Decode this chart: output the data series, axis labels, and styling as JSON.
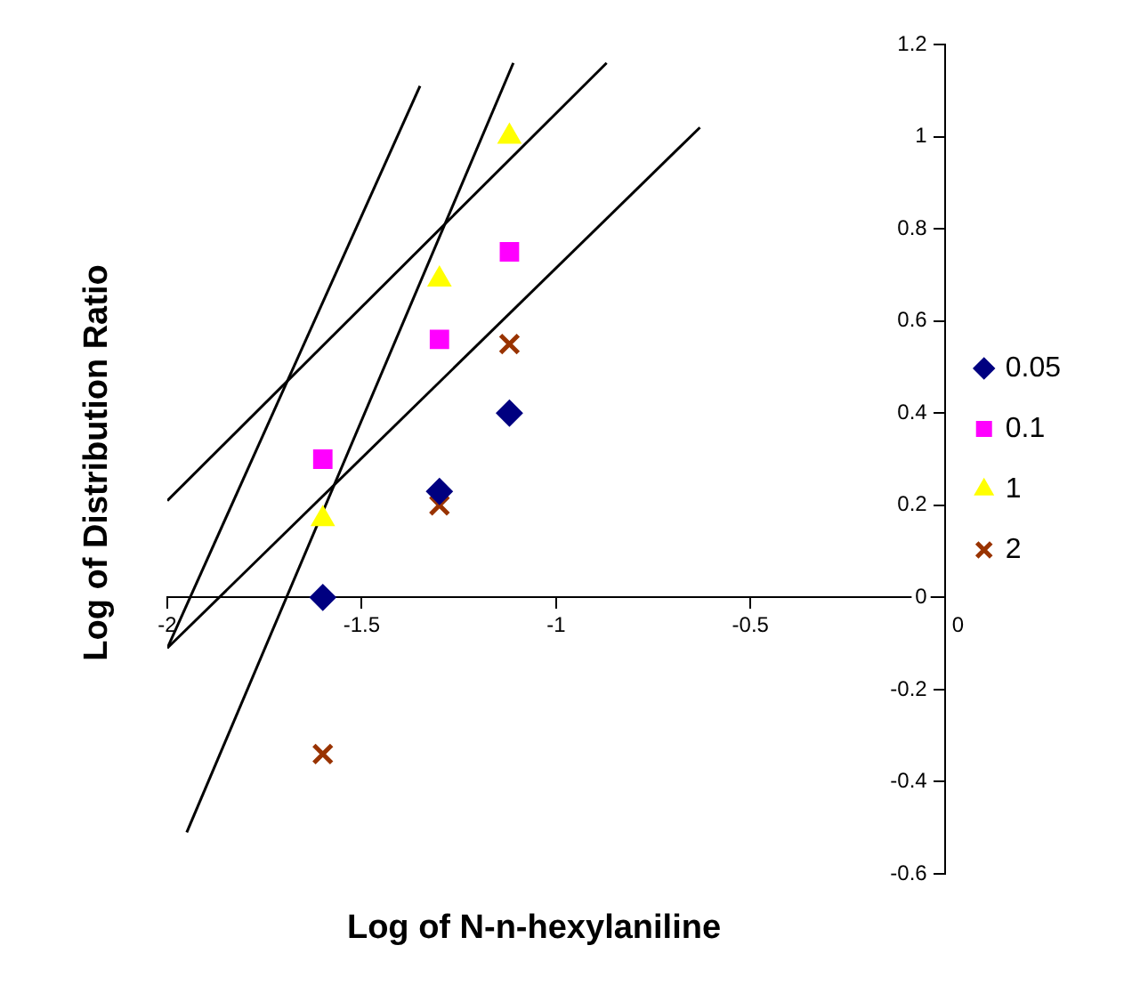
{
  "chart_data": {
    "type": "scatter",
    "xlabel": "Log of N-n-hexylaniline",
    "ylabel": "Log of Distribution Ratio",
    "xlim": [
      -2,
      0
    ],
    "xticks": [
      -2,
      -1.5,
      -1,
      -0.5,
      0
    ],
    "ylim": [
      -0.6,
      1.2
    ],
    "yticks": [
      -0.6,
      -0.4,
      -0.2,
      0,
      0.2,
      0.4,
      0.6,
      0.8,
      1,
      1.2
    ],
    "legend": "right",
    "series": [
      {
        "name": "0.05",
        "color": "#000080",
        "marker": "diamond",
        "x": [
          -1.6,
          -1.3,
          -1.12
        ],
        "values": [
          0,
          0.23,
          0.4
        ]
      },
      {
        "name": "0.1",
        "color": "#ff00ff",
        "marker": "square",
        "x": [
          -1.6,
          -1.3,
          -1.12
        ],
        "values": [
          0.3,
          0.56,
          0.75
        ]
      },
      {
        "name": "1",
        "color": "#ffff00",
        "marker": "triangle",
        "x": [
          -1.6,
          -1.3,
          -1.12
        ],
        "values": [
          0.17,
          0.69,
          1.0
        ]
      },
      {
        "name": "2",
        "color": "#993300",
        "marker": "cross",
        "x": [
          -1.6,
          -1.3,
          -1.12
        ],
        "values": [
          -0.34,
          0.2,
          0.55
        ]
      },
      {
        "type": "line",
        "color": "#000000",
        "marker": "none",
        "x": [
          -2,
          -1.35
        ],
        "values": [
          -0.11,
          1.11
        ]
      },
      {
        "type": "line",
        "color": "#000000",
        "marker": "none",
        "x": [
          -1.95,
          -1.11
        ],
        "values": [
          -0.51,
          1.16
        ]
      },
      {
        "type": "line",
        "color": "#000000",
        "marker": "none",
        "x": [
          -2,
          -0.87
        ],
        "values": [
          0.21,
          1.16
        ]
      },
      {
        "type": "line",
        "color": "#000000",
        "marker": "none",
        "x": [
          -2,
          -0.63
        ],
        "values": [
          -0.11,
          1.02
        ]
      }
    ]
  }
}
